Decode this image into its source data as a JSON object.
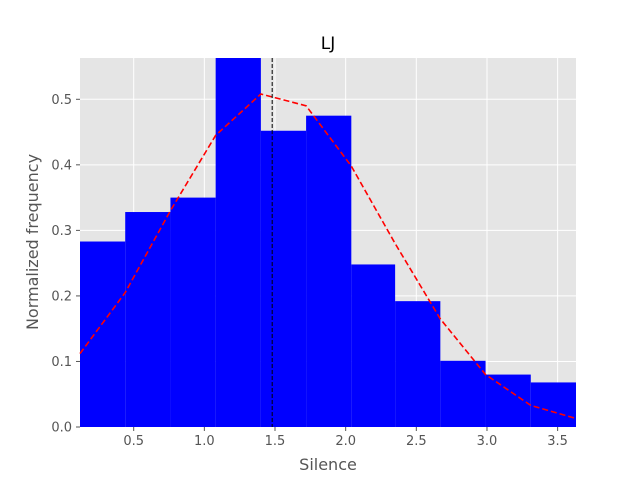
{
  "chart_data": {
    "type": "bar",
    "title": "LJ",
    "xlabel": "Silence",
    "ylabel": "Normalized frequency",
    "xlim": [
      0.12,
      3.63
    ],
    "ylim": [
      0,
      0.563
    ],
    "xticks": [
      "0.5",
      "1.0",
      "1.5",
      "2.0",
      "2.5",
      "3.0",
      "3.5"
    ],
    "yticks": [
      "0.0",
      "0.1",
      "0.2",
      "0.3",
      "0.4",
      "0.5"
    ],
    "grid": true,
    "bins": [
      {
        "start": 0.12,
        "end": 0.44,
        "value": 0.283
      },
      {
        "start": 0.44,
        "end": 0.76,
        "value": 0.328
      },
      {
        "start": 0.76,
        "end": 1.08,
        "value": 0.35
      },
      {
        "start": 1.08,
        "end": 1.4,
        "value": 0.563
      },
      {
        "start": 1.4,
        "end": 1.72,
        "value": 0.452
      },
      {
        "start": 1.72,
        "end": 2.04,
        "value": 0.475
      },
      {
        "start": 2.04,
        "end": 2.35,
        "value": 0.248
      },
      {
        "start": 2.35,
        "end": 2.67,
        "value": 0.192
      },
      {
        "start": 2.67,
        "end": 2.99,
        "value": 0.101
      },
      {
        "start": 2.99,
        "end": 3.31,
        "value": 0.08
      },
      {
        "start": 3.31,
        "end": 3.63,
        "value": 0.068
      }
    ],
    "fit_curve": {
      "x": [
        0.12,
        0.44,
        0.76,
        1.08,
        1.4,
        1.72,
        2.04,
        2.35,
        2.67,
        2.99,
        3.31,
        3.63
      ],
      "y": [
        0.112,
        0.205,
        0.33,
        0.445,
        0.508,
        0.49,
        0.398,
        0.28,
        0.165,
        0.08,
        0.033,
        0.013
      ],
      "style": "dashed"
    },
    "vline": {
      "x": 1.48,
      "style": "dashed"
    },
    "colors": {
      "bars": "#0000ff",
      "fit": "#ff0000",
      "vline": "#000000",
      "plot_bg": "#e5e5e5",
      "grid": "#ffffff"
    }
  }
}
